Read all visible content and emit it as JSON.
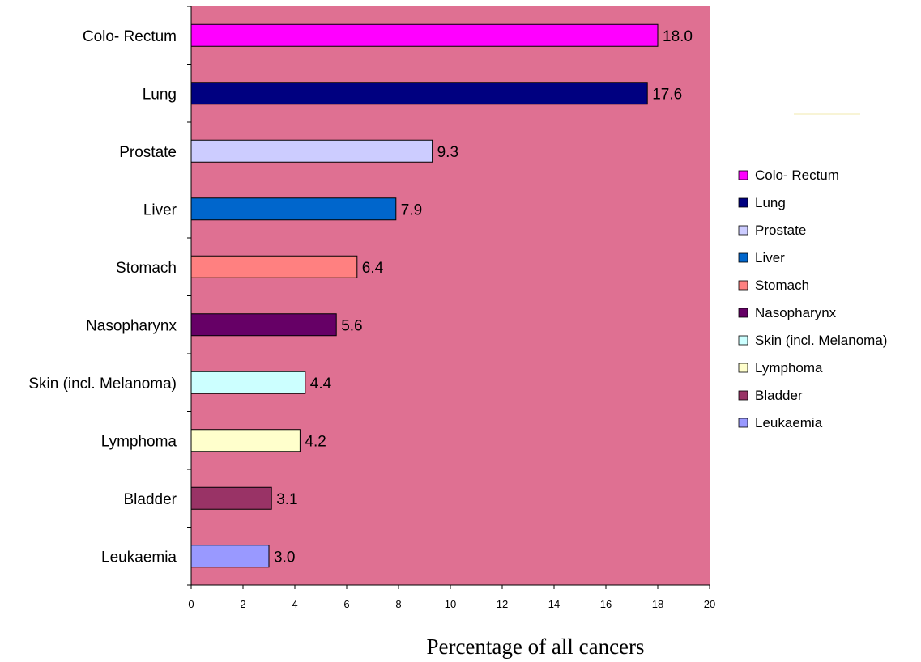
{
  "chart_data": {
    "type": "bar",
    "orientation": "horizontal",
    "categories": [
      "Colo- Rectum",
      "Lung",
      "Prostate",
      "Liver",
      "Stomach",
      "Nasopharynx",
      "Skin (incl. Melanoma)",
      "Lymphoma",
      "Bladder",
      "Leukaemia"
    ],
    "values": [
      18.0,
      17.6,
      9.3,
      7.9,
      6.4,
      5.6,
      4.4,
      4.2,
      3.1,
      3.0
    ],
    "value_labels": [
      "18.0",
      "17.6",
      "9.3",
      "7.9",
      "6.4",
      "5.6",
      "4.4",
      "4.2",
      "3.1",
      "3.0"
    ],
    "colors": [
      "#ff00ff",
      "#000080",
      "#ccccff",
      "#0066cc",
      "#ff8080",
      "#660066",
      "#ccffff",
      "#ffffcc",
      "#993366",
      "#9999ff"
    ],
    "xlabel": "Percentage of all cancers",
    "ylabel": "",
    "title": "",
    "xlim": [
      0,
      20
    ],
    "xticks": [
      "0",
      "2",
      "4",
      "6",
      "8",
      "10",
      "12",
      "14",
      "16",
      "18",
      "20"
    ],
    "plot_background": "#df7092",
    "grid": false,
    "legend": {
      "position": "right",
      "entries": [
        "Colo- Rectum",
        "Lung",
        "Prostate",
        "Liver",
        "Stomach",
        "Nasopharynx",
        "Skin (incl. Melanoma)",
        "Lymphoma",
        "Bladder",
        "Leukaemia"
      ]
    }
  }
}
